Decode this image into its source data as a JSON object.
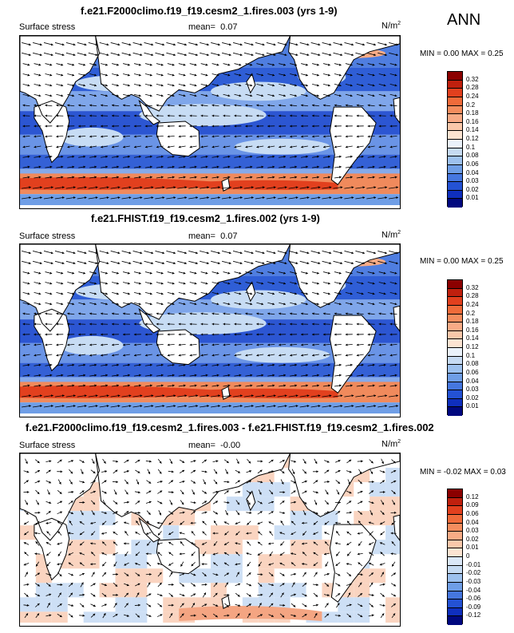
{
  "ann_label": "ANN",
  "units_base": "N/m",
  "units_exp": "2",
  "panels": [
    {
      "title": "f.e21.F2000climo.f19_f19.cesm2_1.fires.003 (yrs 1-9)",
      "variable": "Surface stress",
      "mean_label": "mean=",
      "mean_value": "0.07",
      "min_label": "MIN =",
      "min_value": "0.00",
      "max_label": "MAX =",
      "max_value": "0.25",
      "colorbar": {
        "labels": [
          "0.32",
          "0.28",
          "0.24",
          "0.2",
          "0.18",
          "0.16",
          "0.14",
          "0.12",
          "0.1",
          "0.08",
          "0.06",
          "0.04",
          "0.03",
          "0.02",
          "0.01"
        ],
        "colors": [
          "#8b0000",
          "#c0200e",
          "#e2401e",
          "#f06b3a",
          "#f58d5e",
          "#f8ab86",
          "#fac8aa",
          "#fce4d2",
          "#eaf2fb",
          "#c6dbf3",
          "#9dc1ee",
          "#6f9ee6",
          "#4677df",
          "#2452d4",
          "#0f2fbe",
          "#00087f"
        ]
      }
    },
    {
      "title": "f.e21.FHIST.f19_f19.cesm2_1.fires.002 (yrs 1-9)",
      "variable": "Surface stress",
      "mean_label": "mean=",
      "mean_value": "0.07",
      "min_label": "MIN =",
      "min_value": "0.00",
      "max_label": "MAX =",
      "max_value": "0.25",
      "colorbar": {
        "labels": [
          "0.32",
          "0.28",
          "0.24",
          "0.2",
          "0.18",
          "0.16",
          "0.14",
          "0.12",
          "0.1",
          "0.08",
          "0.06",
          "0.04",
          "0.03",
          "0.02",
          "0.01"
        ],
        "colors": [
          "#8b0000",
          "#c0200e",
          "#e2401e",
          "#f06b3a",
          "#f58d5e",
          "#f8ab86",
          "#fac8aa",
          "#fce4d2",
          "#eaf2fb",
          "#c6dbf3",
          "#9dc1ee",
          "#6f9ee6",
          "#4677df",
          "#2452d4",
          "#0f2fbe",
          "#00087f"
        ]
      }
    },
    {
      "title": "f.e21.F2000climo.f19_f19.cesm2_1.fires.003 - f.e21.FHIST.f19_f19.cesm2_1.fires.002",
      "variable": "Surface stress",
      "mean_label": "mean=",
      "mean_value": "-0.00",
      "min_label": "MIN =",
      "min_value": "-0.02",
      "max_label": "MAX =",
      "max_value": "0.03",
      "colorbar": {
        "labels": [
          "0.12",
          "0.09",
          "0.06",
          "0.04",
          "0.03",
          "0.02",
          "0.01",
          "0",
          "-0.01",
          "-0.02",
          "-0.03",
          "-0.04",
          "-0.06",
          "-0.09",
          "-0.12"
        ],
        "colors": [
          "#8b0000",
          "#c0200e",
          "#e2401e",
          "#f06b3a",
          "#f58d5e",
          "#f8ab86",
          "#fac8aa",
          "#fce4d2",
          "#dbe8f8",
          "#c6dbf3",
          "#9dc1ee",
          "#6f9ee6",
          "#4677df",
          "#2452d4",
          "#0f2fbe",
          "#00087f"
        ]
      }
    }
  ]
}
